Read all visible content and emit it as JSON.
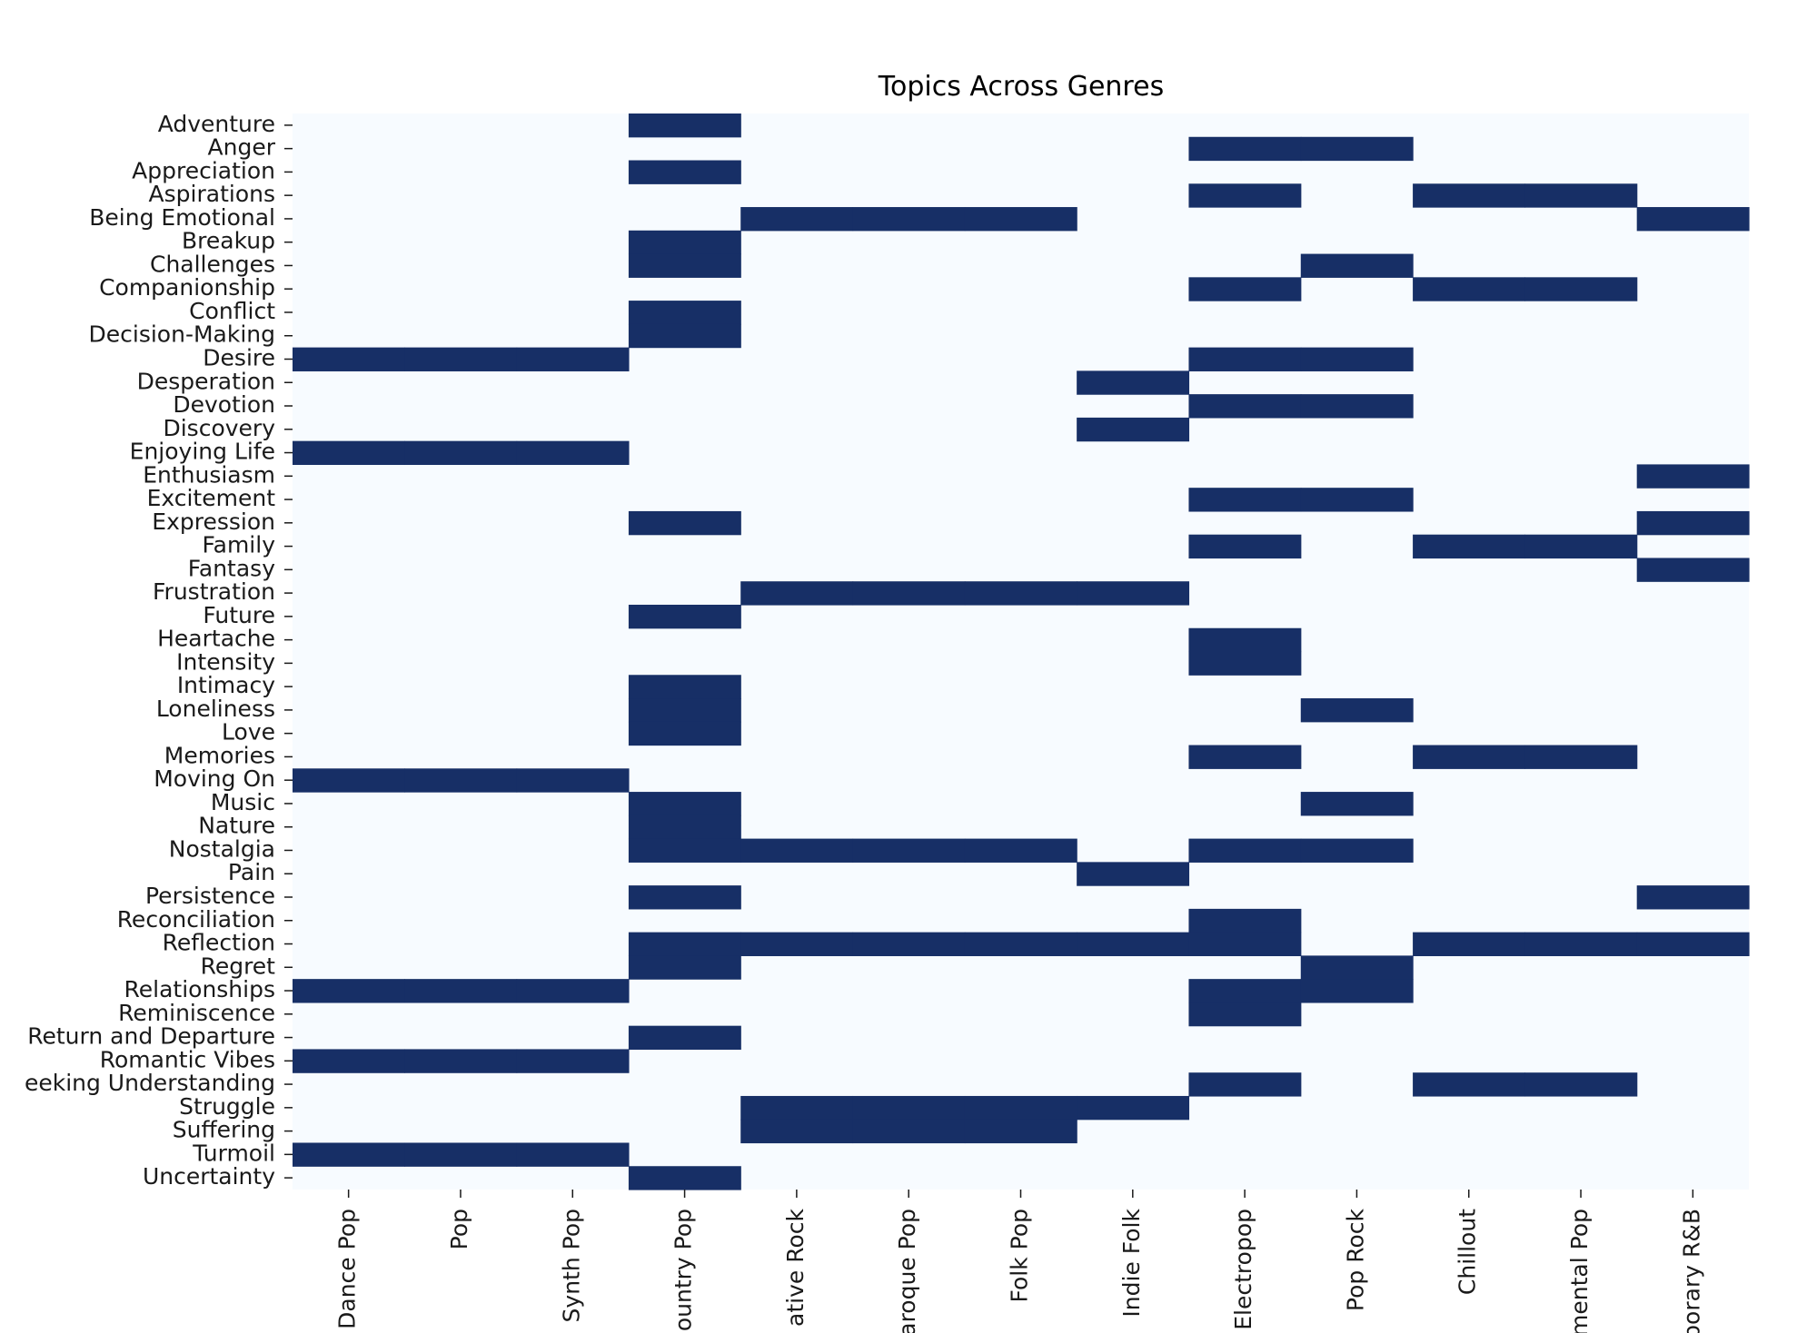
{
  "chart_data": {
    "type": "heatmap",
    "title": "Topics Across Genres",
    "xlabel": "",
    "ylabel": "",
    "grid": false,
    "legend": "none",
    "colors": {
      "low": "#f7fbff",
      "high": "#172f66"
    },
    "x_categories": [
      "Dance Pop",
      "Pop",
      "Synth Pop",
      "Country Pop",
      "Alternative Rock",
      "Baroque Pop",
      "Folk Pop",
      "Indie Folk",
      "Electropop",
      "Pop Rock",
      "Chillout",
      "Instrumental Pop",
      "Contemporary R&B"
    ],
    "x_tick_labels_visible": [
      "Dance Pop",
      "Pop",
      "Synth Pop",
      "ountry Pop",
      "ative Rock",
      "aroque Pop",
      "Folk Pop",
      "Indie Folk",
      "Electropop",
      "Pop Rock",
      "Chillout",
      "mental Pop",
      "porary R&B"
    ],
    "y_categories": [
      "Adventure",
      "Anger",
      "Appreciation",
      "Aspirations",
      "Being Emotional",
      "Breakup",
      "Challenges",
      "Companionship",
      "Conflict",
      "Decision-Making",
      "Desire",
      "Desperation",
      "Devotion",
      "Discovery",
      "Enjoying Life",
      "Enthusiasm",
      "Excitement",
      "Expression",
      "Family",
      "Fantasy",
      "Frustration",
      "Future",
      "Heartache",
      "Intensity",
      "Intimacy",
      "Loneliness",
      "Love",
      "Memories",
      "Moving On",
      "Music",
      "Nature",
      "Nostalgia",
      "Pain",
      "Persistence",
      "Reconciliation",
      "Reflection",
      "Regret",
      "Relationships",
      "Reminiscence",
      "Return and Departure",
      "Romantic Vibes",
      "Seeking Understanding",
      "Struggle",
      "Suffering",
      "Turmoil",
      "Uncertainty"
    ],
    "y_tick_labels_visible": [
      "Adventure",
      "Anger",
      "Appreciation",
      "Aspirations",
      "Being Emotional",
      "Breakup",
      "Challenges",
      "Companionship",
      "Conflict",
      "Decision-Making",
      "Desire",
      "Desperation",
      "Devotion",
      "Discovery",
      "Enjoying Life",
      "Enthusiasm",
      "Excitement",
      "Expression",
      "Family",
      "Fantasy",
      "Frustration",
      "Future",
      "Heartache",
      "Intensity",
      "Intimacy",
      "Loneliness",
      "Love",
      "Memories",
      "Moving On",
      "Music",
      "Nature",
      "Nostalgia",
      "Pain",
      "Persistence",
      "Reconciliation",
      "Reflection",
      "Regret",
      "Relationships",
      "Reminiscence",
      "Return and Departure",
      "Romantic Vibes",
      "eeking Understanding",
      "Struggle",
      "Suffering",
      "Turmoil",
      "Uncertainty"
    ],
    "values": [
      [
        0,
        0,
        0,
        1,
        0,
        0,
        0,
        0,
        0,
        0,
        0,
        0,
        0
      ],
      [
        0,
        0,
        0,
        0,
        0,
        0,
        0,
        0,
        1,
        1,
        0,
        0,
        0
      ],
      [
        0,
        0,
        0,
        1,
        0,
        0,
        0,
        0,
        0,
        0,
        0,
        0,
        0
      ],
      [
        0,
        0,
        0,
        0,
        0,
        0,
        0,
        0,
        1,
        0,
        1,
        1,
        0
      ],
      [
        0,
        0,
        0,
        0,
        1,
        1,
        1,
        0,
        0,
        0,
        0,
        0,
        1
      ],
      [
        0,
        0,
        0,
        1,
        0,
        0,
        0,
        0,
        0,
        0,
        0,
        0,
        0
      ],
      [
        0,
        0,
        0,
        1,
        0,
        0,
        0,
        0,
        0,
        1,
        0,
        0,
        0
      ],
      [
        0,
        0,
        0,
        0,
        0,
        0,
        0,
        0,
        1,
        0,
        1,
        1,
        0
      ],
      [
        0,
        0,
        0,
        1,
        0,
        0,
        0,
        0,
        0,
        0,
        0,
        0,
        0
      ],
      [
        0,
        0,
        0,
        1,
        0,
        0,
        0,
        0,
        0,
        0,
        0,
        0,
        0
      ],
      [
        1,
        1,
        1,
        0,
        0,
        0,
        0,
        0,
        1,
        1,
        0,
        0,
        0
      ],
      [
        0,
        0,
        0,
        0,
        0,
        0,
        0,
        1,
        0,
        0,
        0,
        0,
        0
      ],
      [
        0,
        0,
        0,
        0,
        0,
        0,
        0,
        0,
        1,
        1,
        0,
        0,
        0
      ],
      [
        0,
        0,
        0,
        0,
        0,
        0,
        0,
        1,
        0,
        0,
        0,
        0,
        0
      ],
      [
        1,
        1,
        1,
        0,
        0,
        0,
        0,
        0,
        0,
        0,
        0,
        0,
        0
      ],
      [
        0,
        0,
        0,
        0,
        0,
        0,
        0,
        0,
        0,
        0,
        0,
        0,
        1
      ],
      [
        0,
        0,
        0,
        0,
        0,
        0,
        0,
        0,
        1,
        1,
        0,
        0,
        0
      ],
      [
        0,
        0,
        0,
        1,
        0,
        0,
        0,
        0,
        0,
        0,
        0,
        0,
        1
      ],
      [
        0,
        0,
        0,
        0,
        0,
        0,
        0,
        0,
        1,
        0,
        1,
        1,
        0
      ],
      [
        0,
        0,
        0,
        0,
        0,
        0,
        0,
        0,
        0,
        0,
        0,
        0,
        1
      ],
      [
        0,
        0,
        0,
        0,
        1,
        1,
        1,
        1,
        0,
        0,
        0,
        0,
        0
      ],
      [
        0,
        0,
        0,
        1,
        0,
        0,
        0,
        0,
        0,
        0,
        0,
        0,
        0
      ],
      [
        0,
        0,
        0,
        0,
        0,
        0,
        0,
        0,
        1,
        0,
        0,
        0,
        0
      ],
      [
        0,
        0,
        0,
        0,
        0,
        0,
        0,
        0,
        1,
        0,
        0,
        0,
        0
      ],
      [
        0,
        0,
        0,
        1,
        0,
        0,
        0,
        0,
        0,
        0,
        0,
        0,
        0
      ],
      [
        0,
        0,
        0,
        1,
        0,
        0,
        0,
        0,
        0,
        1,
        0,
        0,
        0
      ],
      [
        0,
        0,
        0,
        1,
        0,
        0,
        0,
        0,
        0,
        0,
        0,
        0,
        0
      ],
      [
        0,
        0,
        0,
        0,
        0,
        0,
        0,
        0,
        1,
        0,
        1,
        1,
        0
      ],
      [
        1,
        1,
        1,
        0,
        0,
        0,
        0,
        0,
        0,
        0,
        0,
        0,
        0
      ],
      [
        0,
        0,
        0,
        1,
        0,
        0,
        0,
        0,
        0,
        1,
        0,
        0,
        0
      ],
      [
        0,
        0,
        0,
        1,
        0,
        0,
        0,
        0,
        0,
        0,
        0,
        0,
        0
      ],
      [
        0,
        0,
        0,
        1,
        1,
        1,
        1,
        0,
        1,
        1,
        0,
        0,
        0
      ],
      [
        0,
        0,
        0,
        0,
        0,
        0,
        0,
        1,
        0,
        0,
        0,
        0,
        0
      ],
      [
        0,
        0,
        0,
        1,
        0,
        0,
        0,
        0,
        0,
        0,
        0,
        0,
        1
      ],
      [
        0,
        0,
        0,
        0,
        0,
        0,
        0,
        0,
        1,
        0,
        0,
        0,
        0
      ],
      [
        0,
        0,
        0,
        1,
        1,
        1,
        1,
        1,
        1,
        0,
        1,
        1,
        1
      ],
      [
        0,
        0,
        0,
        1,
        0,
        0,
        0,
        0,
        0,
        1,
        0,
        0,
        0
      ],
      [
        1,
        1,
        1,
        0,
        0,
        0,
        0,
        0,
        1,
        1,
        0,
        0,
        0
      ],
      [
        0,
        0,
        0,
        0,
        0,
        0,
        0,
        0,
        1,
        0,
        0,
        0,
        0
      ],
      [
        0,
        0,
        0,
        1,
        0,
        0,
        0,
        0,
        0,
        0,
        0,
        0,
        0
      ],
      [
        1,
        1,
        1,
        0,
        0,
        0,
        0,
        0,
        0,
        0,
        0,
        0,
        0
      ],
      [
        0,
        0,
        0,
        0,
        0,
        0,
        0,
        0,
        1,
        0,
        1,
        1,
        0
      ],
      [
        0,
        0,
        0,
        0,
        1,
        1,
        1,
        1,
        0,
        0,
        0,
        0,
        0
      ],
      [
        0,
        0,
        0,
        0,
        1,
        1,
        1,
        0,
        0,
        0,
        0,
        0,
        0
      ],
      [
        1,
        1,
        1,
        0,
        0,
        0,
        0,
        0,
        0,
        0,
        0,
        0,
        0
      ],
      [
        0,
        0,
        0,
        1,
        0,
        0,
        0,
        0,
        0,
        0,
        0,
        0,
        0
      ]
    ]
  }
}
